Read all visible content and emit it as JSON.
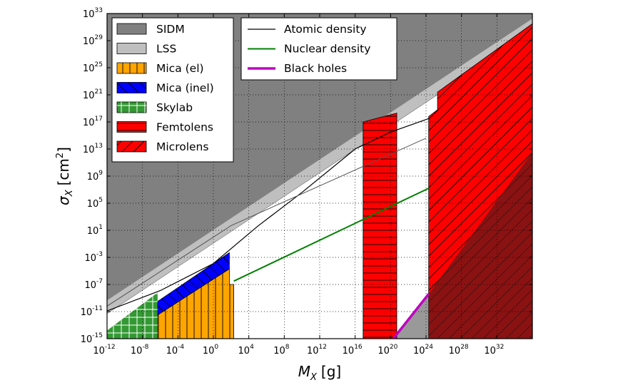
{
  "chart_data": {
    "type": "area",
    "xscale": "log10",
    "yscale": "log10",
    "xlim_log10": [
      -12,
      36
    ],
    "ylim_log10": [
      -15,
      33
    ],
    "xlabel_symbol": "M",
    "xlabel_sub": "X",
    "xlabel_unit": "[g]",
    "ylabel_symbol": "σ",
    "ylabel_sub": "X",
    "ylabel_unit": "[cm",
    "ylabel_unit_exp": "2",
    "ylabel_unit_end": "]",
    "grid": true,
    "x_ticks": [
      {
        "base": "10",
        "exp": "-12",
        "log": -12
      },
      {
        "base": "10",
        "exp": "-8",
        "log": -8
      },
      {
        "base": "10",
        "exp": "-4",
        "log": -4
      },
      {
        "base": "10",
        "exp": "0",
        "log": 0
      },
      {
        "base": "10",
        "exp": "4",
        "log": 4
      },
      {
        "base": "10",
        "exp": "8",
        "log": 8
      },
      {
        "base": "10",
        "exp": "12",
        "log": 12
      },
      {
        "base": "10",
        "exp": "16",
        "log": 16
      },
      {
        "base": "10",
        "exp": "20",
        "log": 20
      },
      {
        "base": "10",
        "exp": "24",
        "log": 24
      },
      {
        "base": "10",
        "exp": "28",
        "log": 28
      },
      {
        "base": "10",
        "exp": "32",
        "log": 32
      }
    ],
    "y_ticks": [
      {
        "base": "10",
        "exp": "-15",
        "log": -15
      },
      {
        "base": "10",
        "exp": "-11",
        "log": -11
      },
      {
        "base": "10",
        "exp": "-7",
        "log": -7
      },
      {
        "base": "10",
        "exp": "-3",
        "log": -3
      },
      {
        "base": "10",
        "exp": "1",
        "log": 1
      },
      {
        "base": "10",
        "exp": "5",
        "log": 5
      },
      {
        "base": "10",
        "exp": "9",
        "log": 9
      },
      {
        "base": "10",
        "exp": "13",
        "log": 13
      },
      {
        "base": "10",
        "exp": "17",
        "log": 17
      },
      {
        "base": "10",
        "exp": "21",
        "log": 21
      },
      {
        "base": "10",
        "exp": "25",
        "log": 25
      },
      {
        "base": "10",
        "exp": "29",
        "log": 29
      },
      {
        "base": "10",
        "exp": "33",
        "log": 33
      }
    ],
    "regions": [
      {
        "key": "sidm",
        "name": "SIDM",
        "color": "#808080",
        "opacity": 1.0,
        "edge": "#666666",
        "hatch": "none",
        "polygon_log10": [
          [
            -12,
            -9.3
          ],
          [
            36,
            32.3
          ],
          [
            36,
            33
          ],
          [
            -12,
            33
          ]
        ]
      },
      {
        "key": "lss",
        "name": "LSS",
        "color": "#bfbfbf",
        "opacity": 1.0,
        "edge": "#888888",
        "hatch": "none",
        "polygon_log10": [
          [
            -12,
            -11.3
          ],
          [
            36,
            30.3
          ],
          [
            36,
            32.3
          ],
          [
            -12,
            -9.3
          ]
        ]
      },
      {
        "key": "lss_low",
        "name": "",
        "color": "#999999",
        "opacity": 1.0,
        "edge": "none",
        "hatch": "none",
        "polygon_log10": [
          [
            20.3,
            -15
          ],
          [
            24.3,
            -8.4
          ],
          [
            24.3,
            -15
          ]
        ]
      },
      {
        "key": "mica_el",
        "name": "Mica (el)",
        "color": "#ffa500",
        "opacity": 1.0,
        "edge": "#000000",
        "hatch": "vertical",
        "polygon_log10": [
          [
            -6.3,
            -15
          ],
          [
            -6.3,
            -11.5
          ],
          [
            1.8,
            -4.7
          ],
          [
            1.8,
            -7
          ],
          [
            2.3,
            -7
          ],
          [
            2.3,
            -15
          ]
        ]
      },
      {
        "key": "mica_inel",
        "name": "Mica (inel)",
        "color": "#0000ff",
        "opacity": 1.0,
        "edge": "#000000",
        "hatch": "diag-back",
        "polygon_log10": [
          [
            -6.3,
            -11.5
          ],
          [
            1.8,
            -4.7
          ],
          [
            1.8,
            -2.3
          ],
          [
            -6.3,
            -9.5
          ]
        ]
      },
      {
        "key": "skylab",
        "name": "Skylab",
        "color": "#008000",
        "opacity": 0.8,
        "edge": "none",
        "hatch": "grid",
        "polygon_log10": [
          [
            -12,
            -15
          ],
          [
            -12,
            -13.8
          ],
          [
            -6.3,
            -8.2
          ],
          [
            -6.3,
            -15
          ]
        ]
      },
      {
        "key": "femtolens",
        "name": "Femtolens",
        "color": "#ff0000",
        "opacity": 1.0,
        "edge": "#000000",
        "hatch": "horizontal",
        "polygon_log10": [
          [
            16.9,
            -15
          ],
          [
            16.9,
            17
          ],
          [
            20.7,
            18.3
          ],
          [
            20.7,
            -15
          ]
        ]
      },
      {
        "key": "microlens",
        "name": "Microlens",
        "color": "#ff0000",
        "opacity": 1.0,
        "edge": "#000000",
        "hatch": "diag-fwd",
        "polygon_log10": [
          [
            24.3,
            -15
          ],
          [
            24.3,
            17.8
          ],
          [
            25.3,
            18.8
          ],
          [
            25.3,
            21.4
          ],
          [
            36,
            31.5
          ],
          [
            36,
            -15
          ]
        ]
      },
      {
        "key": "bh_region",
        "name": "",
        "color": "#5a1a1a",
        "opacity": 0.7,
        "edge": "none",
        "hatch": "none",
        "polygon_log10": [
          [
            24.3,
            -8.4
          ],
          [
            36,
            12.5
          ],
          [
            36,
            -15
          ],
          [
            24.3,
            -15
          ]
        ]
      }
    ],
    "lines": [
      {
        "key": "atomic",
        "name": "Atomic density",
        "color": "#000000",
        "width": 1.2,
        "points_log10": [
          [
            -12,
            -10.9
          ],
          [
            -6,
            -7.9
          ],
          [
            0,
            -3.9
          ],
          [
            5,
            1.6
          ],
          [
            10,
            6.6
          ],
          [
            16,
            13.0
          ],
          [
            20,
            15.5
          ],
          [
            24.3,
            17.5
          ]
        ]
      },
      {
        "key": "atomic2",
        "name": "",
        "color": "#555555",
        "width": 1.0,
        "points_log10": [
          [
            -12,
            -10.2
          ],
          [
            2,
            1.7
          ],
          [
            24,
            14.6
          ]
        ]
      },
      {
        "key": "nuclear",
        "name": "Nuclear density",
        "color": "#008000",
        "width": 2.0,
        "points_log10": [
          [
            2.3,
            -6.5
          ],
          [
            24.3,
            7.2
          ]
        ]
      },
      {
        "key": "blackholes",
        "name": "Black holes",
        "color": "#bf00bf",
        "width": 3.5,
        "points_log10": [
          [
            20.3,
            -15
          ],
          [
            24.3,
            -8.4
          ]
        ]
      }
    ],
    "legend_left": [
      {
        "label": "SIDM",
        "swatch": "sidm"
      },
      {
        "label": "LSS",
        "swatch": "lss"
      },
      {
        "label": "Mica (el)",
        "swatch": "mica_el"
      },
      {
        "label": "Mica (inel)",
        "swatch": "mica_inel"
      },
      {
        "label": "Skylab",
        "swatch": "skylab"
      },
      {
        "label": "Femtolens",
        "swatch": "femtolens"
      },
      {
        "label": "Microlens",
        "swatch": "microlens"
      }
    ],
    "legend_right": [
      {
        "label": "Atomic density",
        "line": "atomic"
      },
      {
        "label": "Nuclear density",
        "line": "nuclear"
      },
      {
        "label": "Black holes",
        "line": "blackholes"
      }
    ]
  }
}
